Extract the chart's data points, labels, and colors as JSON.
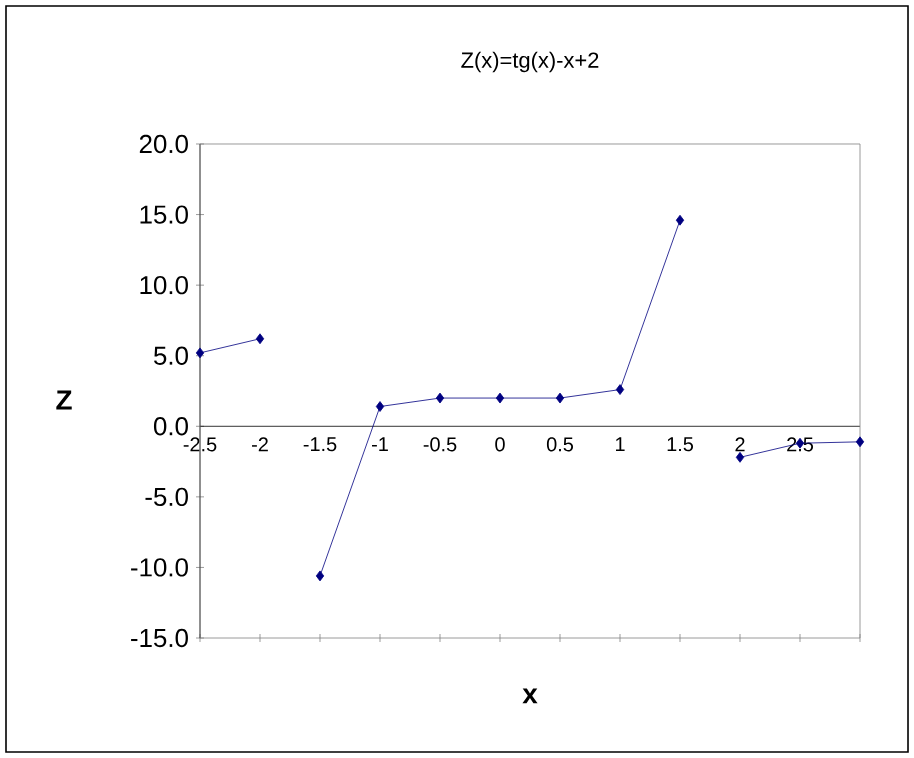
{
  "chart_data": {
    "type": "line",
    "title": "Z(x)=tg(x)-x+2",
    "xlabel": "x",
    "ylabel": "Z",
    "xlim": [
      -2.5,
      3
    ],
    "xticks": [
      -2.5,
      -2,
      -1.5,
      -1,
      -0.5,
      0,
      0.5,
      1,
      1.5,
      2,
      2.5,
      {
        "value": 3,
        "label": null
      }
    ],
    "ylim": [
      -15,
      20
    ],
    "yticks": [
      {
        "value": -15,
        "label": "-15.0"
      },
      {
        "value": -10,
        "label": "-10.0"
      },
      {
        "value": -5,
        "label": "-5.0"
      },
      {
        "value": 0,
        "label": "0.0"
      },
      {
        "value": 5,
        "label": "5.0"
      },
      {
        "value": 10,
        "label": "10.0"
      },
      {
        "value": 15,
        "label": "15.0"
      },
      {
        "value": 20,
        "label": "20.0"
      }
    ],
    "series": [
      {
        "color": "#000080",
        "x": [
          -2.5,
          -2
        ],
        "values": [
          5.2,
          6.2
        ]
      },
      {
        "color": "#000080",
        "x": [
          -1.5,
          -1,
          -0.5,
          0,
          0.5,
          1,
          1.5
        ],
        "values": [
          -10.6,
          1.4,
          2,
          2,
          2,
          2.6,
          14.6
        ]
      },
      {
        "color": "#000080",
        "x": [
          2,
          2.5,
          3
        ],
        "values": [
          -2.2,
          -1.2,
          -1.1
        ]
      }
    ],
    "marker": "diamond",
    "line_style": "solid"
  }
}
